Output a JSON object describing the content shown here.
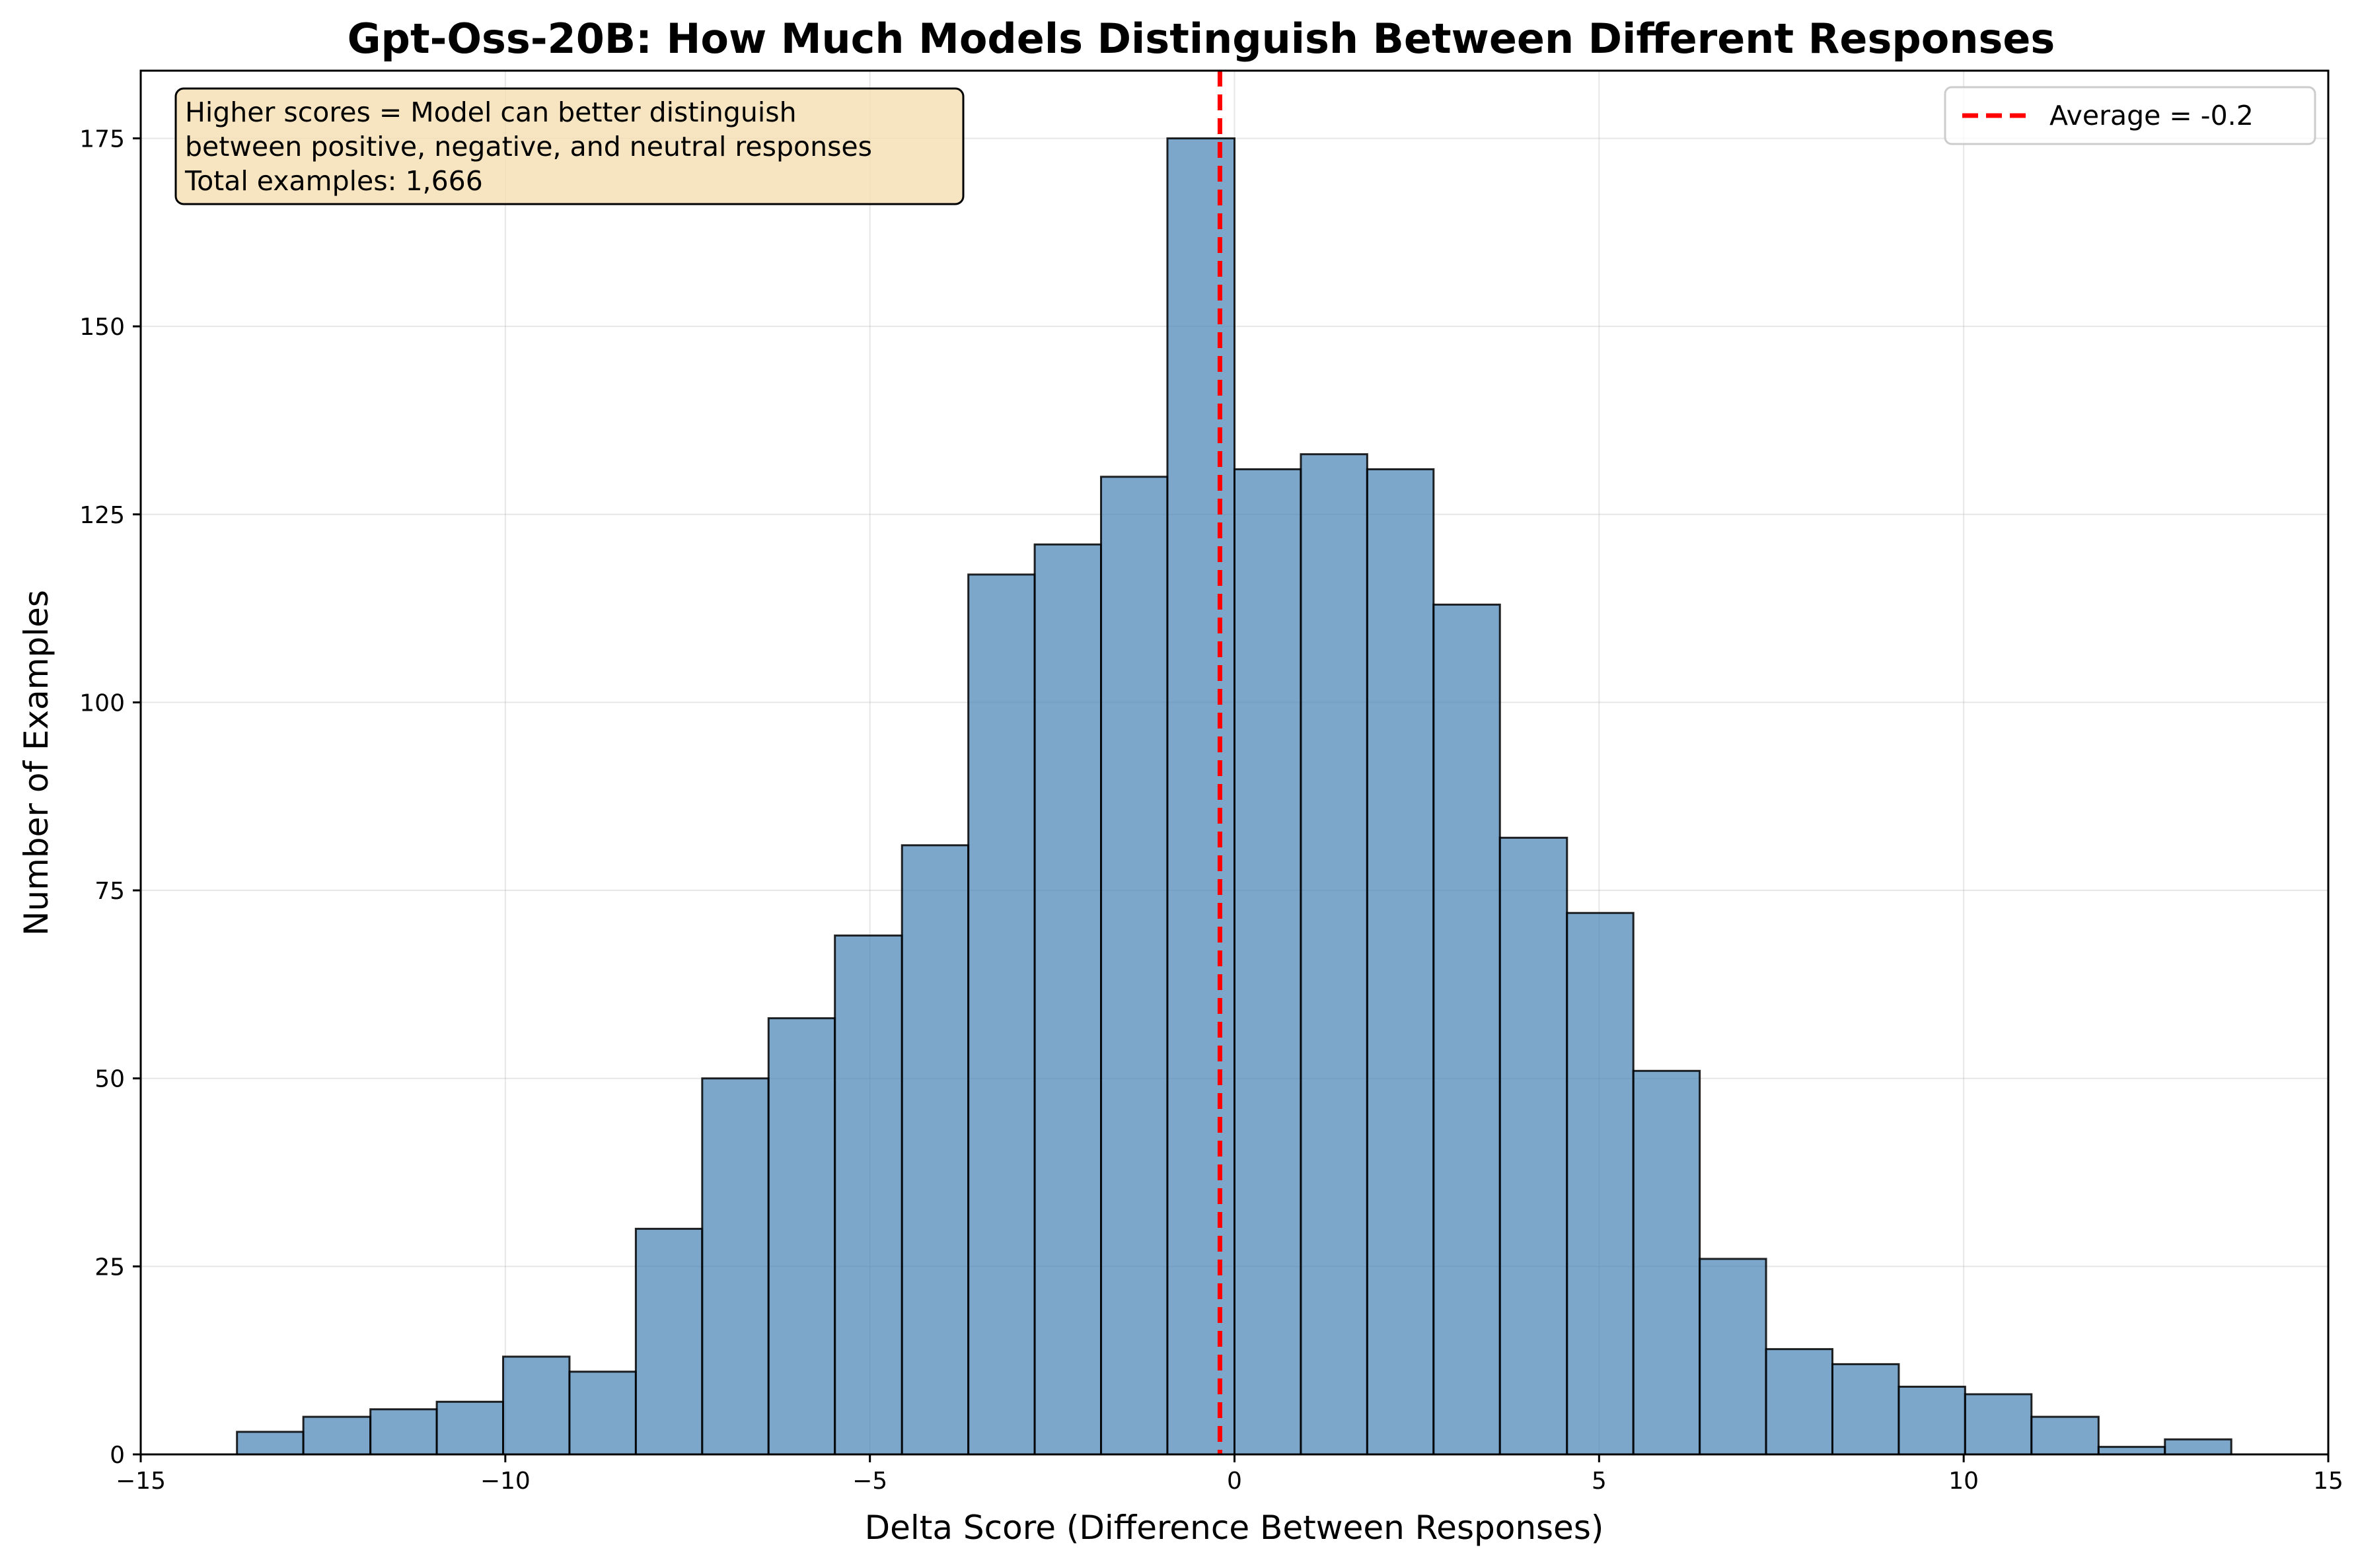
{
  "chart_data": {
    "type": "bar",
    "title": "Gpt-Oss-20B: How Much Models Distinguish Between Different Responses",
    "xlabel": "Delta Score (Difference Between Responses)",
    "ylabel": "Number of Examples",
    "xlim": [
      -15,
      15
    ],
    "ylim": [
      0,
      184
    ],
    "xticks": [
      -15,
      -10,
      -5,
      0,
      5,
      10,
      15
    ],
    "xtick_labels": [
      "−15",
      "−10",
      "−5",
      "0",
      "5",
      "10",
      "15"
    ],
    "yticks": [
      0,
      25,
      50,
      75,
      100,
      125,
      150,
      175
    ],
    "ytick_labels": [
      "0",
      "25",
      "50",
      "75",
      "100",
      "125",
      "150",
      "175"
    ],
    "grid": true,
    "bar_color": "#4682b4",
    "bar_opacity": 0.7,
    "edge_color": "#000000",
    "bin_edges": [
      -13.68,
      -12.77,
      -11.85,
      -10.94,
      -10.03,
      -9.12,
      -8.21,
      -7.3,
      -6.39,
      -5.48,
      -4.56,
      -3.65,
      -2.74,
      -1.83,
      -0.92,
      0.0,
      0.91,
      1.82,
      2.73,
      3.64,
      4.56,
      5.47,
      6.38,
      7.29,
      8.2,
      9.11,
      10.02,
      10.93,
      11.85,
      12.76,
      13.67
    ],
    "values": [
      3,
      5,
      6,
      7,
      13,
      11,
      30,
      50,
      58,
      69,
      81,
      117,
      121,
      130,
      175,
      131,
      133,
      131,
      113,
      82,
      72,
      51,
      26,
      14,
      12,
      9,
      8,
      5,
      1,
      2
    ],
    "mean_line": {
      "x": -0.2,
      "label": "Average = -0.2",
      "color": "#ff0000"
    },
    "legend": {
      "position": "top-right",
      "entries": [
        "Average = -0.2"
      ]
    },
    "annotation": {
      "lines": [
        "Higher scores = Model can better distinguish",
        "between positive, negative, and neutral responses",
        "Total examples: 1,666"
      ],
      "position": "top-left",
      "background": "#f5deb3"
    }
  }
}
